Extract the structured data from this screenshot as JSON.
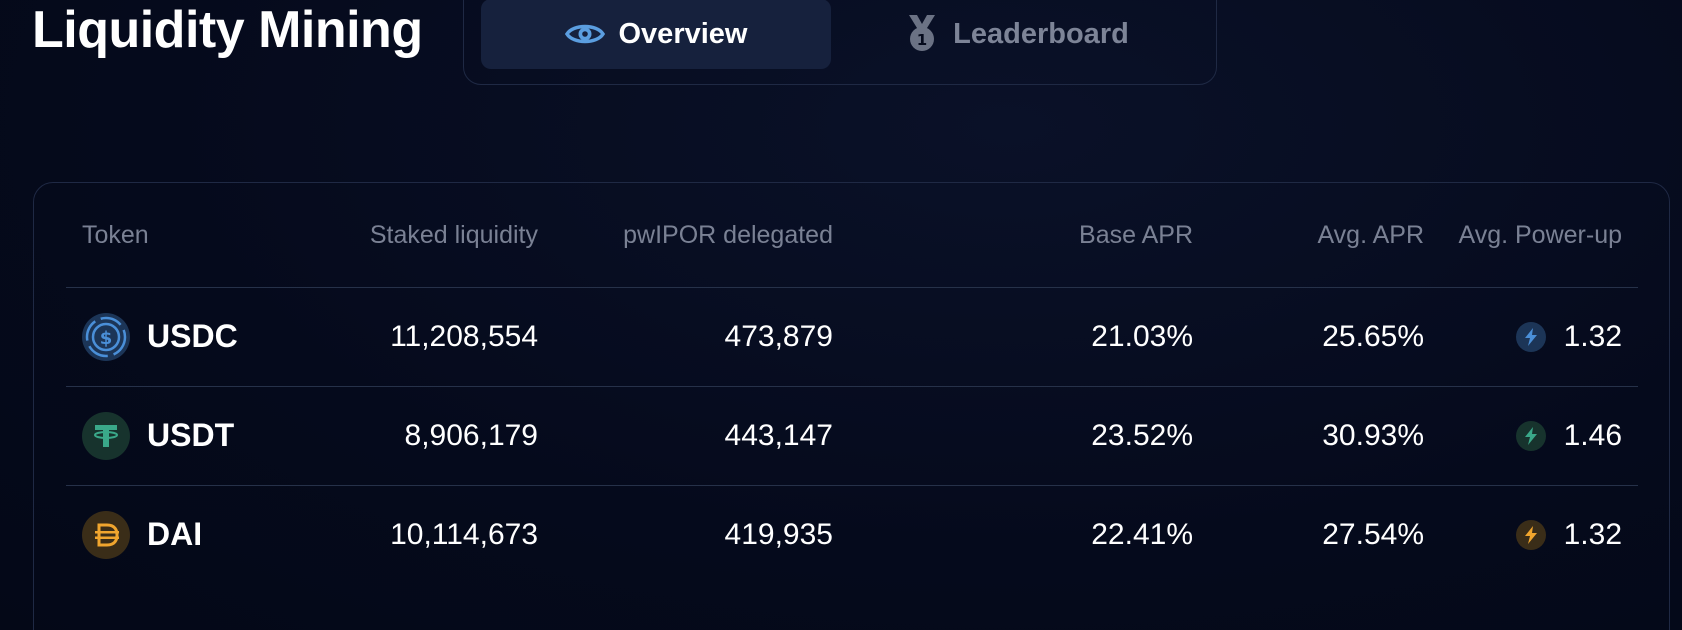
{
  "page": {
    "title": "Liquidity Mining"
  },
  "tabs": [
    {
      "label": "Overview",
      "icon": "eye-icon",
      "active": true
    },
    {
      "label": "Leaderboard",
      "icon": "medal-icon",
      "active": false
    }
  ],
  "table": {
    "headers": {
      "token": "Token",
      "staked": "Staked liquidity",
      "pwipor": "pwIPOR delegated",
      "base_apr": "Base APR",
      "avg_apr": "Avg. APR",
      "avg_powerup": "Avg. Power-up"
    },
    "rows": [
      {
        "token": "USDC",
        "icon": "usdc-icon",
        "staked": "11,208,554",
        "pwipor": "473,879",
        "base_apr": "21.03%",
        "avg_apr": "25.65%",
        "powerup": "1.32",
        "power_icon": "lightning-icon",
        "color": "#2775ca"
      },
      {
        "token": "USDT",
        "icon": "usdt-icon",
        "staked": "8,906,179",
        "pwipor": "443,147",
        "base_apr": "23.52%",
        "avg_apr": "30.93%",
        "powerup": "1.46",
        "power_icon": "lightning-icon",
        "color": "#26a17b"
      },
      {
        "token": "DAI",
        "icon": "dai-icon",
        "staked": "10,114,673",
        "pwipor": "419,935",
        "base_apr": "22.41%",
        "avg_apr": "27.54%",
        "powerup": "1.32",
        "power_icon": "lightning-icon",
        "color": "#f5ac37"
      }
    ]
  },
  "colors": {
    "background": "#050a1c",
    "active_tab": "#16213d",
    "border": "#1f2944",
    "muted_text": "#7a8194"
  }
}
